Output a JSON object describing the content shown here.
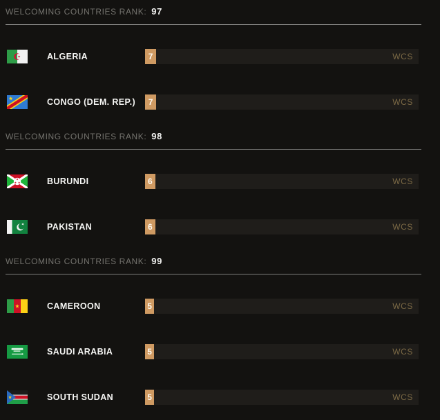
{
  "labels": {
    "rank_prefix": "WELCOMING COUNTRIES RANK:",
    "score_unit": "WCS"
  },
  "colors": {
    "background": "#131210",
    "bar_track": "#1f1d1a",
    "bar_fill": "#cf9a62",
    "wcs_label": "#7b6945",
    "header_text": "#74736e",
    "rank_number": "#f2f2f0",
    "country_name": "#f5f5f3",
    "divider": "#7f7f7d",
    "score_text": "#fdf8ef"
  },
  "groups": [
    {
      "rank": "97",
      "countries": [
        {
          "name": "ALGERIA",
          "flag": "algeria",
          "score": 7
        },
        {
          "name": "CONGO (DEM. REP.)",
          "flag": "congo-dem-rep",
          "score": 7
        }
      ]
    },
    {
      "rank": "98",
      "countries": [
        {
          "name": "BURUNDI",
          "flag": "burundi",
          "score": 6
        },
        {
          "name": "PAKISTAN",
          "flag": "pakistan",
          "score": 6
        }
      ]
    },
    {
      "rank": "99",
      "countries": [
        {
          "name": "CAMEROON",
          "flag": "cameroon",
          "score": 5
        },
        {
          "name": "SAUDI ARABIA",
          "flag": "saudi-arabia",
          "score": 5
        },
        {
          "name": "SOUTH SUDAN",
          "flag": "south-sudan",
          "score": 5
        }
      ]
    }
  ],
  "chart_data": {
    "type": "bar",
    "orientation": "horizontal",
    "title": "Welcoming Countries Rank",
    "categories": [
      "ALGERIA",
      "CONGO (DEM. REP.)",
      "BURUNDI",
      "PAKISTAN",
      "CAMEROON",
      "SAUDI ARABIA",
      "SOUTH SUDAN"
    ],
    "values": [
      7,
      7,
      6,
      6,
      5,
      5,
      5
    ],
    "unit": "WCS",
    "group_ranks": [
      {
        "rank": 97,
        "countries": [
          "ALGERIA",
          "CONGO (DEM. REP.)"
        ],
        "wcs": 7
      },
      {
        "rank": 98,
        "countries": [
          "BURUNDI",
          "PAKISTAN"
        ],
        "wcs": 6
      },
      {
        "rank": 99,
        "countries": [
          "CAMEROON",
          "SAUDI ARABIA",
          "SOUTH SUDAN"
        ],
        "wcs": 5
      }
    ],
    "legend_position": "none",
    "grid": false
  }
}
